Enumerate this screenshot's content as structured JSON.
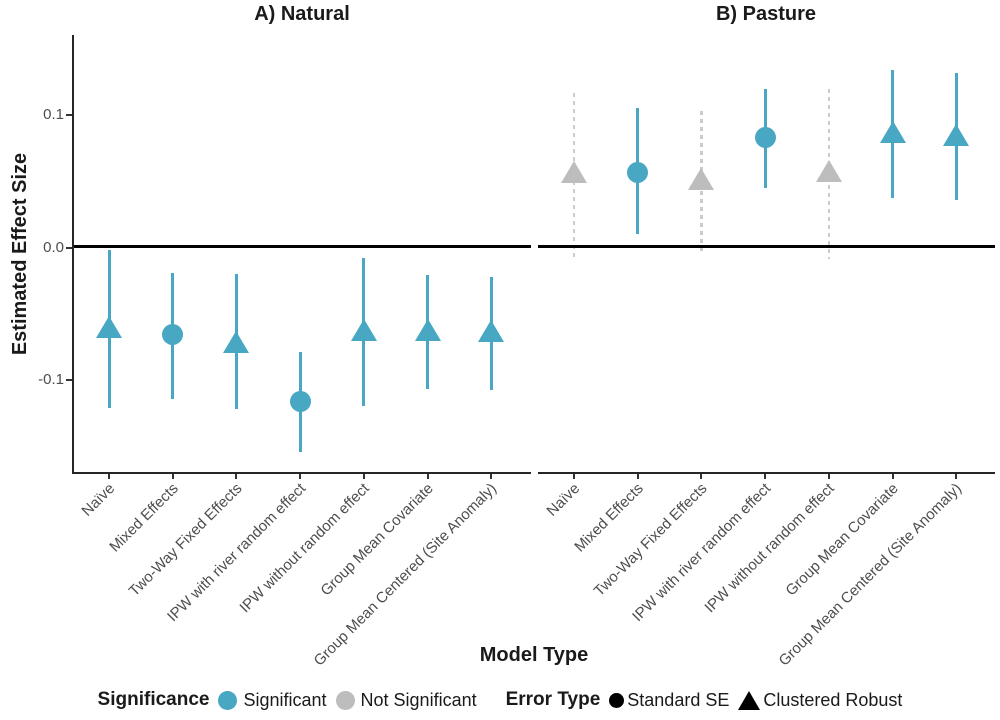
{
  "chart_data": {
    "type": "scatter",
    "description": "Faceted point-range plot of estimated effect sizes by model type",
    "xlabel": "Model Type",
    "ylabel": "Estimated Effect Size",
    "yticks": [
      "0.1",
      "0.0",
      "-0.1"
    ],
    "ytick_values": [
      0.1,
      0.0,
      -0.1
    ],
    "ylim": [
      -0.17,
      0.161
    ],
    "reference_line": 0,
    "grid": false,
    "legend_position": "bottom",
    "categories": [
      "Naïve",
      "Mixed Effects",
      "Two-Way Fixed Effects",
      "IPW with river random effect",
      "IPW without random effect",
      "Group Mean Covariate",
      "Group Mean Centered (Site Anomaly)"
    ],
    "facets": [
      {
        "title": "A) Natural",
        "points": [
          {
            "model": "Naïve",
            "shape": "triangle",
            "error_type": "Clustered Robust",
            "significant": true,
            "est": -0.06,
            "lo": -0.121,
            "hi": -0.002
          },
          {
            "model": "Mixed Effects",
            "shape": "circle",
            "error_type": "Standard SE",
            "significant": true,
            "est": -0.066,
            "lo": -0.114,
            "hi": -0.019
          },
          {
            "model": "Two-Way Fixed Effects",
            "shape": "triangle",
            "error_type": "Clustered Robust",
            "significant": true,
            "est": -0.071,
            "lo": -0.122,
            "hi": -0.02
          },
          {
            "model": "IPW with river random effect",
            "shape": "circle",
            "error_type": "Standard SE",
            "significant": true,
            "est": -0.116,
            "lo": -0.154,
            "hi": -0.079
          },
          {
            "model": "IPW without random effect",
            "shape": "triangle",
            "error_type": "Clustered Robust",
            "significant": true,
            "est": -0.062,
            "lo": -0.12,
            "hi": -0.008
          },
          {
            "model": "Group Mean Covariate",
            "shape": "triangle",
            "error_type": "Clustered Robust",
            "significant": true,
            "est": -0.062,
            "lo": -0.107,
            "hi": -0.021
          },
          {
            "model": "Group Mean Centered (Site Anomaly)",
            "shape": "triangle",
            "error_type": "Clustered Robust",
            "significant": true,
            "est": -0.063,
            "lo": -0.108,
            "hi": -0.022
          }
        ]
      },
      {
        "title": "B) Pasture",
        "points": [
          {
            "model": "Naïve",
            "shape": "triangle",
            "error_type": "Clustered Robust",
            "significant": false,
            "est": 0.057,
            "lo": -0.007,
            "hi": 0.117
          },
          {
            "model": "Mixed Effects",
            "shape": "circle",
            "error_type": "Standard SE",
            "significant": true,
            "est": 0.057,
            "lo": 0.01,
            "hi": 0.105
          },
          {
            "model": "Two-Way Fixed Effects",
            "shape": "triangle",
            "error_type": "Clustered Robust",
            "significant": false,
            "est": 0.052,
            "lo": -0.004,
            "hi": 0.103
          },
          {
            "model": "IPW with river random effect",
            "shape": "circle",
            "error_type": "Standard SE",
            "significant": true,
            "est": 0.083,
            "lo": 0.045,
            "hi": 0.12
          },
          {
            "model": "IPW without random effect",
            "shape": "triangle",
            "error_type": "Clustered Robust",
            "significant": false,
            "est": 0.058,
            "lo": -0.009,
            "hi": 0.12
          },
          {
            "model": "Group Mean Covariate",
            "shape": "triangle",
            "error_type": "Clustered Robust",
            "significant": true,
            "est": 0.087,
            "lo": 0.037,
            "hi": 0.134
          },
          {
            "model": "Group Mean Centered (Site Anomaly)",
            "shape": "triangle",
            "error_type": "Clustered Robust",
            "significant": true,
            "est": 0.085,
            "lo": 0.036,
            "hi": 0.132
          }
        ]
      }
    ]
  },
  "legend": {
    "significance": {
      "title": "Significance",
      "items": [
        {
          "label": "Significant",
          "color": "#48A7C3"
        },
        {
          "label": "Not Significant",
          "color": "#BDBDBD"
        }
      ]
    },
    "error_type": {
      "title": "Error Type",
      "items": [
        {
          "label": "Standard SE",
          "shape": "circle"
        },
        {
          "label": "Clustered Robust",
          "shape": "triangle"
        }
      ]
    }
  },
  "colors": {
    "significant": "#48A7C3",
    "not_significant": "#BDBDBD",
    "dashed_interval": "#CBCBCB",
    "axis_text": "#4D4D4D",
    "axis_line": "#262626",
    "reference_line": "#000000",
    "background": "#FFFFFF"
  }
}
